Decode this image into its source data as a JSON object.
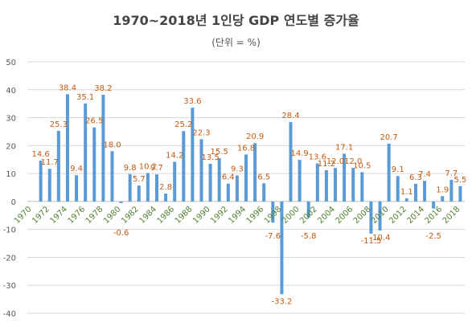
{
  "chart_data": {
    "type": "bar",
    "title": "1970~2018년 1인당 GDP 연도별 증가율",
    "subtitle": "(단위 = %)",
    "xlabel": "",
    "ylabel": "",
    "ylim": [
      -40,
      50
    ],
    "yticks": [
      50,
      40,
      30,
      20,
      10,
      0,
      -10,
      -20,
      -30,
      -40
    ],
    "grid": true,
    "legend": "none",
    "colors": {
      "bar": "#5b9bd5",
      "data_label": "#c55a11",
      "x_tick_label": "#548235",
      "grid": "#d9d9d9",
      "axis_text": "#595959"
    },
    "categories": [
      "1970",
      "1971",
      "1972",
      "1973",
      "1974",
      "1975",
      "1976",
      "1977",
      "1978",
      "1979",
      "1980",
      "1981",
      "1982",
      "1983",
      "1984",
      "1985",
      "1986",
      "1987",
      "1988",
      "1989",
      "1990",
      "1991",
      "1992",
      "1993",
      "1994",
      "1995",
      "1996",
      "1997",
      "1998",
      "1999",
      "2000",
      "2001",
      "2002",
      "2003",
      "2004",
      "2005",
      "2006",
      "2007",
      "2008",
      "2009",
      "2010",
      "2011",
      "2012",
      "2013",
      "2014",
      "2015",
      "2016",
      "2017",
      "2018"
    ],
    "x_tick_labels": [
      "1970",
      "",
      "1972",
      "",
      "1974",
      "",
      "1976",
      "",
      "1978",
      "",
      "1980",
      "",
      "1982",
      "",
      "1984",
      "",
      "1986",
      "",
      "1988",
      "",
      "1990",
      "",
      "1992",
      "",
      "1994",
      "",
      "1996",
      "",
      "1998",
      "",
      "2000",
      "",
      "2002",
      "",
      "2004",
      "",
      "2006",
      "",
      "2008",
      "",
      "2010",
      "",
      "2012",
      "",
      "2014",
      "",
      "2016",
      "",
      "2018"
    ],
    "values": [
      0,
      14.6,
      11.7,
      25.3,
      38.4,
      9.4,
      35.1,
      26.5,
      38.2,
      18.0,
      -0.6,
      9.8,
      5.7,
      10.2,
      9.7,
      2.8,
      14.2,
      25.2,
      33.6,
      22.3,
      13.5,
      15.5,
      6.4,
      9.3,
      16.8,
      20.9,
      6.5,
      -7.6,
      -33.2,
      28.4,
      14.9,
      -5.8,
      13.6,
      11.2,
      12.0,
      17.1,
      12.0,
      10.5,
      -11.5,
      -10.4,
      20.7,
      9.1,
      1.1,
      6.3,
      7.4,
      -2.5,
      1.9,
      7.7,
      5.5
    ],
    "data_labels": [
      "",
      "14.6",
      "11.7",
      "25.3",
      "38.4",
      "9.4",
      "35.1",
      "26.5",
      "38.2",
      "18.0",
      "-0.6",
      "9.8",
      "5.7",
      "10.2",
      "9.7",
      "2.8",
      "14.2",
      "25.2",
      "33.6",
      "22.3",
      "13.5",
      "15.5",
      "6.4",
      "9.3",
      "16.8",
      "20.9",
      "6.5",
      "-7.6",
      "-33.2",
      "28.4",
      "14.9",
      "-5.8",
      "13.6",
      "11.2",
      "12.0",
      "17.1",
      "12.0",
      "10.5",
      "-11.5",
      "-10.4",
      "20.7",
      "9.1",
      "1.1",
      "6.3",
      "7.4",
      "-2.5",
      "1.9",
      "7.7",
      "5.5"
    ]
  }
}
